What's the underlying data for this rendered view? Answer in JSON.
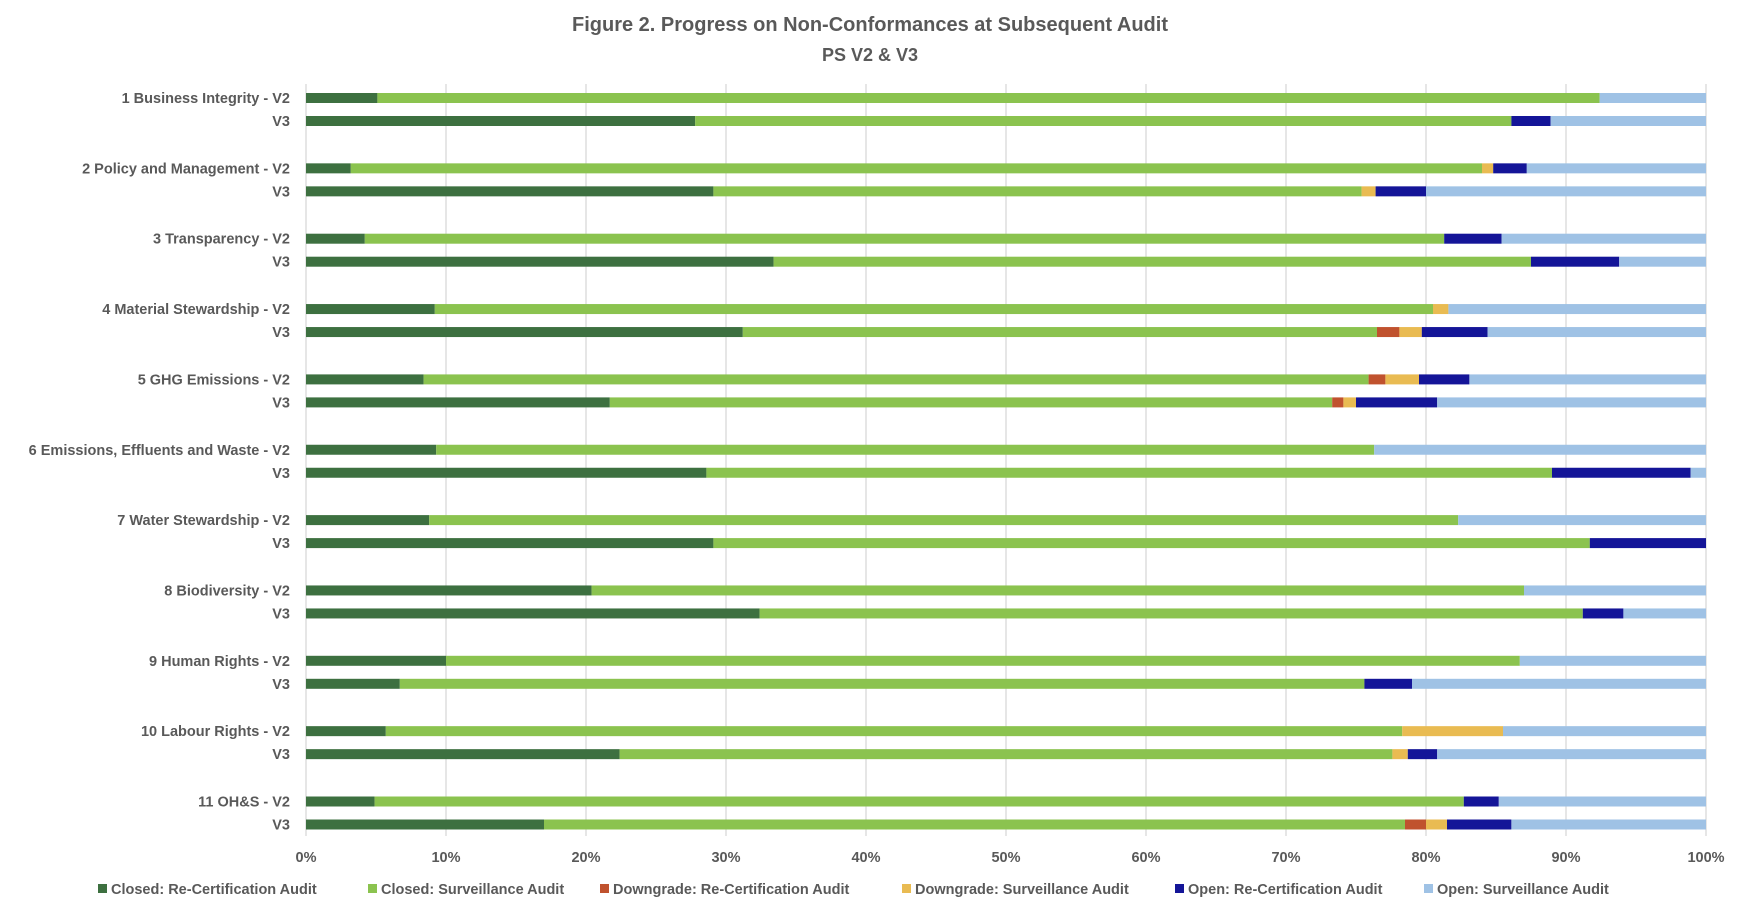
{
  "chart_data": {
    "type": "bar",
    "orientation": "horizontal",
    "stacked": "percent",
    "title": "Figure 2. Progress on Non-Conformances at Subsequent Audit",
    "subtitle": "PS V2 & V3",
    "xlabel": "",
    "ylabel": "",
    "xlim": [
      0,
      100
    ],
    "grid": true,
    "legend_position": "bottom",
    "x_ticks": [
      "0%",
      "10%",
      "20%",
      "30%",
      "40%",
      "50%",
      "60%",
      "70%",
      "80%",
      "90%",
      "100%"
    ],
    "categories": [
      "1 Business Integrity - V2",
      "V3",
      "2 Policy and Management - V2",
      "V3",
      "3 Transparency - V2",
      "V3",
      "4 Material Stewardship - V2",
      "V3",
      "5 GHG Emissions - V2",
      "V3",
      "6 Emissions, Effluents and Waste - V2",
      "V3",
      "7 Water Stewardship - V2",
      "V3",
      "8 Biodiversity - V2",
      "V3",
      "9 Human Rights - V2",
      "V3",
      "10 Labour Rights - V2",
      "V3",
      "11 OH&S - V2",
      "V3"
    ],
    "series": [
      {
        "name": "Closed: Re-Certification Audit",
        "color": "#3d7040",
        "values": [
          5.1,
          27.8,
          3.2,
          29.1,
          4.2,
          33.4,
          9.2,
          31.2,
          8.4,
          21.7,
          9.3,
          28.6,
          8.8,
          29.1,
          20.4,
          32.4,
          10.0,
          6.7,
          5.7,
          22.4,
          4.9,
          17.0
        ]
      },
      {
        "name": "Closed: Surveillance Audit",
        "color": "#8bc34f",
        "values": [
          87.3,
          58.3,
          80.8,
          46.3,
          77.1,
          54.1,
          71.3,
          45.3,
          67.5,
          51.6,
          67.0,
          60.4,
          73.5,
          62.6,
          66.6,
          58.8,
          76.7,
          68.9,
          72.6,
          55.2,
          77.8,
          61.5
        ]
      },
      {
        "name": "Downgrade: Re-Certification Audit",
        "color": "#c0522e",
        "values": [
          0,
          0,
          0,
          0,
          0,
          0,
          0,
          1.6,
          1.2,
          0.8,
          0,
          0,
          0,
          0,
          0,
          0,
          0,
          0,
          0,
          0,
          0,
          1.5
        ]
      },
      {
        "name": "Downgrade: Surveillance Audit",
        "color": "#e9bb52",
        "values": [
          0,
          0,
          0.8,
          1.0,
          0,
          0,
          1.1,
          1.6,
          2.4,
          0.9,
          0,
          0,
          0,
          0,
          0,
          0,
          0,
          0,
          7.2,
          1.1,
          0,
          1.5
        ]
      },
      {
        "name": "Open: Re-Certification Audit",
        "color": "#141598",
        "values": [
          0,
          2.8,
          2.4,
          3.6,
          4.1,
          6.3,
          0,
          4.7,
          3.6,
          5.8,
          0,
          9.9,
          0,
          8.3,
          0,
          2.9,
          0,
          3.4,
          0,
          2.1,
          2.5,
          4.6
        ]
      },
      {
        "name": "Open: Surveillance Audit",
        "color": "#9fc2e5",
        "values": [
          7.6,
          11.1,
          12.8,
          20.0,
          14.6,
          6.2,
          18.4,
          15.6,
          16.9,
          19.2,
          23.7,
          1.1,
          17.7,
          0,
          13.0,
          5.9,
          13.3,
          21.0,
          14.5,
          19.2,
          14.8,
          13.9
        ]
      }
    ]
  }
}
